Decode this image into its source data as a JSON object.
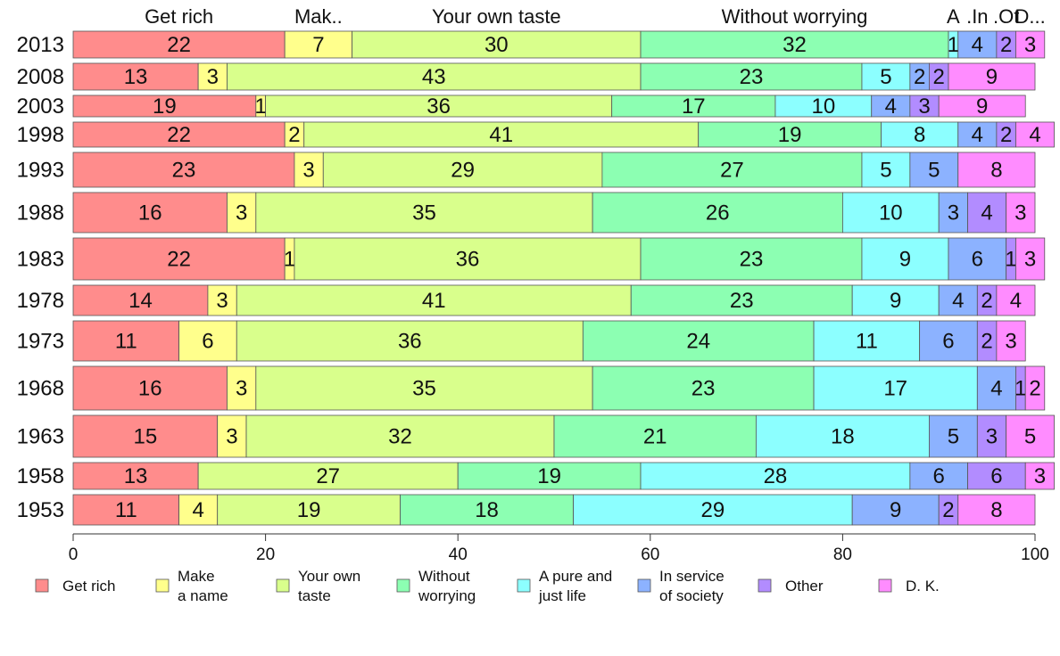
{
  "chart_data": {
    "type": "bar",
    "orientation": "horizontal",
    "stacked": true,
    "title": "",
    "xlabel": "",
    "ylabel": "",
    "xlim": [
      0,
      100
    ],
    "x_ticks": [
      0,
      20,
      40,
      60,
      80,
      100
    ],
    "grid": false,
    "legend_position": "bottom",
    "top_labels": [
      "Get rich",
      "Mak..",
      "Your own taste",
      "Without worrying",
      "A",
      ".In",
      ".Ot",
      "D..."
    ],
    "categories": [
      "2013",
      "2008",
      "2003",
      "1998",
      "1993",
      "1988",
      "1983",
      "1978",
      "1973",
      "1968",
      "1963",
      "1958",
      "1953"
    ],
    "series": [
      {
        "name": "Get rich",
        "legend": [
          "Get rich"
        ],
        "color": "#ff8c8c",
        "values": [
          22,
          13,
          19,
          22,
          23,
          16,
          22,
          14,
          11,
          16,
          15,
          13,
          11
        ]
      },
      {
        "name": "Make a name",
        "legend": [
          "Make",
          "a name"
        ],
        "color": "#ffff8c",
        "values": [
          7,
          3,
          1,
          2,
          3,
          3,
          1,
          3,
          6,
          3,
          3,
          0,
          4
        ]
      },
      {
        "name": "Your own taste",
        "legend": [
          "Your own",
          "taste"
        ],
        "color": "#d9ff8c",
        "values": [
          30,
          43,
          36,
          41,
          29,
          35,
          36,
          41,
          36,
          35,
          32,
          27,
          19
        ]
      },
      {
        "name": "Without worrying",
        "legend": [
          "Without",
          "worrying"
        ],
        "color": "#8cffb2",
        "values": [
          32,
          23,
          17,
          19,
          27,
          26,
          23,
          23,
          24,
          23,
          21,
          19,
          18
        ]
      },
      {
        "name": "A pure and just life",
        "legend": [
          "A pure and",
          "just life"
        ],
        "color": "#8cffff",
        "values": [
          1,
          5,
          10,
          8,
          5,
          10,
          9,
          9,
          11,
          17,
          18,
          28,
          29
        ]
      },
      {
        "name": "In service of society",
        "legend": [
          "In service",
          "of society"
        ],
        "color": "#8cb2ff",
        "values": [
          4,
          2,
          4,
          4,
          5,
          3,
          6,
          4,
          6,
          4,
          5,
          6,
          9
        ]
      },
      {
        "name": "Other",
        "legend": [
          "Other"
        ],
        "color": "#b28cff",
        "values": [
          2,
          2,
          3,
          2,
          0,
          4,
          1,
          2,
          2,
          1,
          3,
          6,
          2
        ]
      },
      {
        "name": "D. K.",
        "legend": [
          "D. K."
        ],
        "color": "#ff8cff",
        "values": [
          3,
          9,
          9,
          4,
          8,
          3,
          3,
          4,
          3,
          2,
          5,
          3,
          8
        ]
      }
    ],
    "row_widths": [
      30,
      30,
      24,
      28,
      39,
      45,
      47,
      34,
      45,
      49,
      47,
      30,
      34
    ]
  }
}
